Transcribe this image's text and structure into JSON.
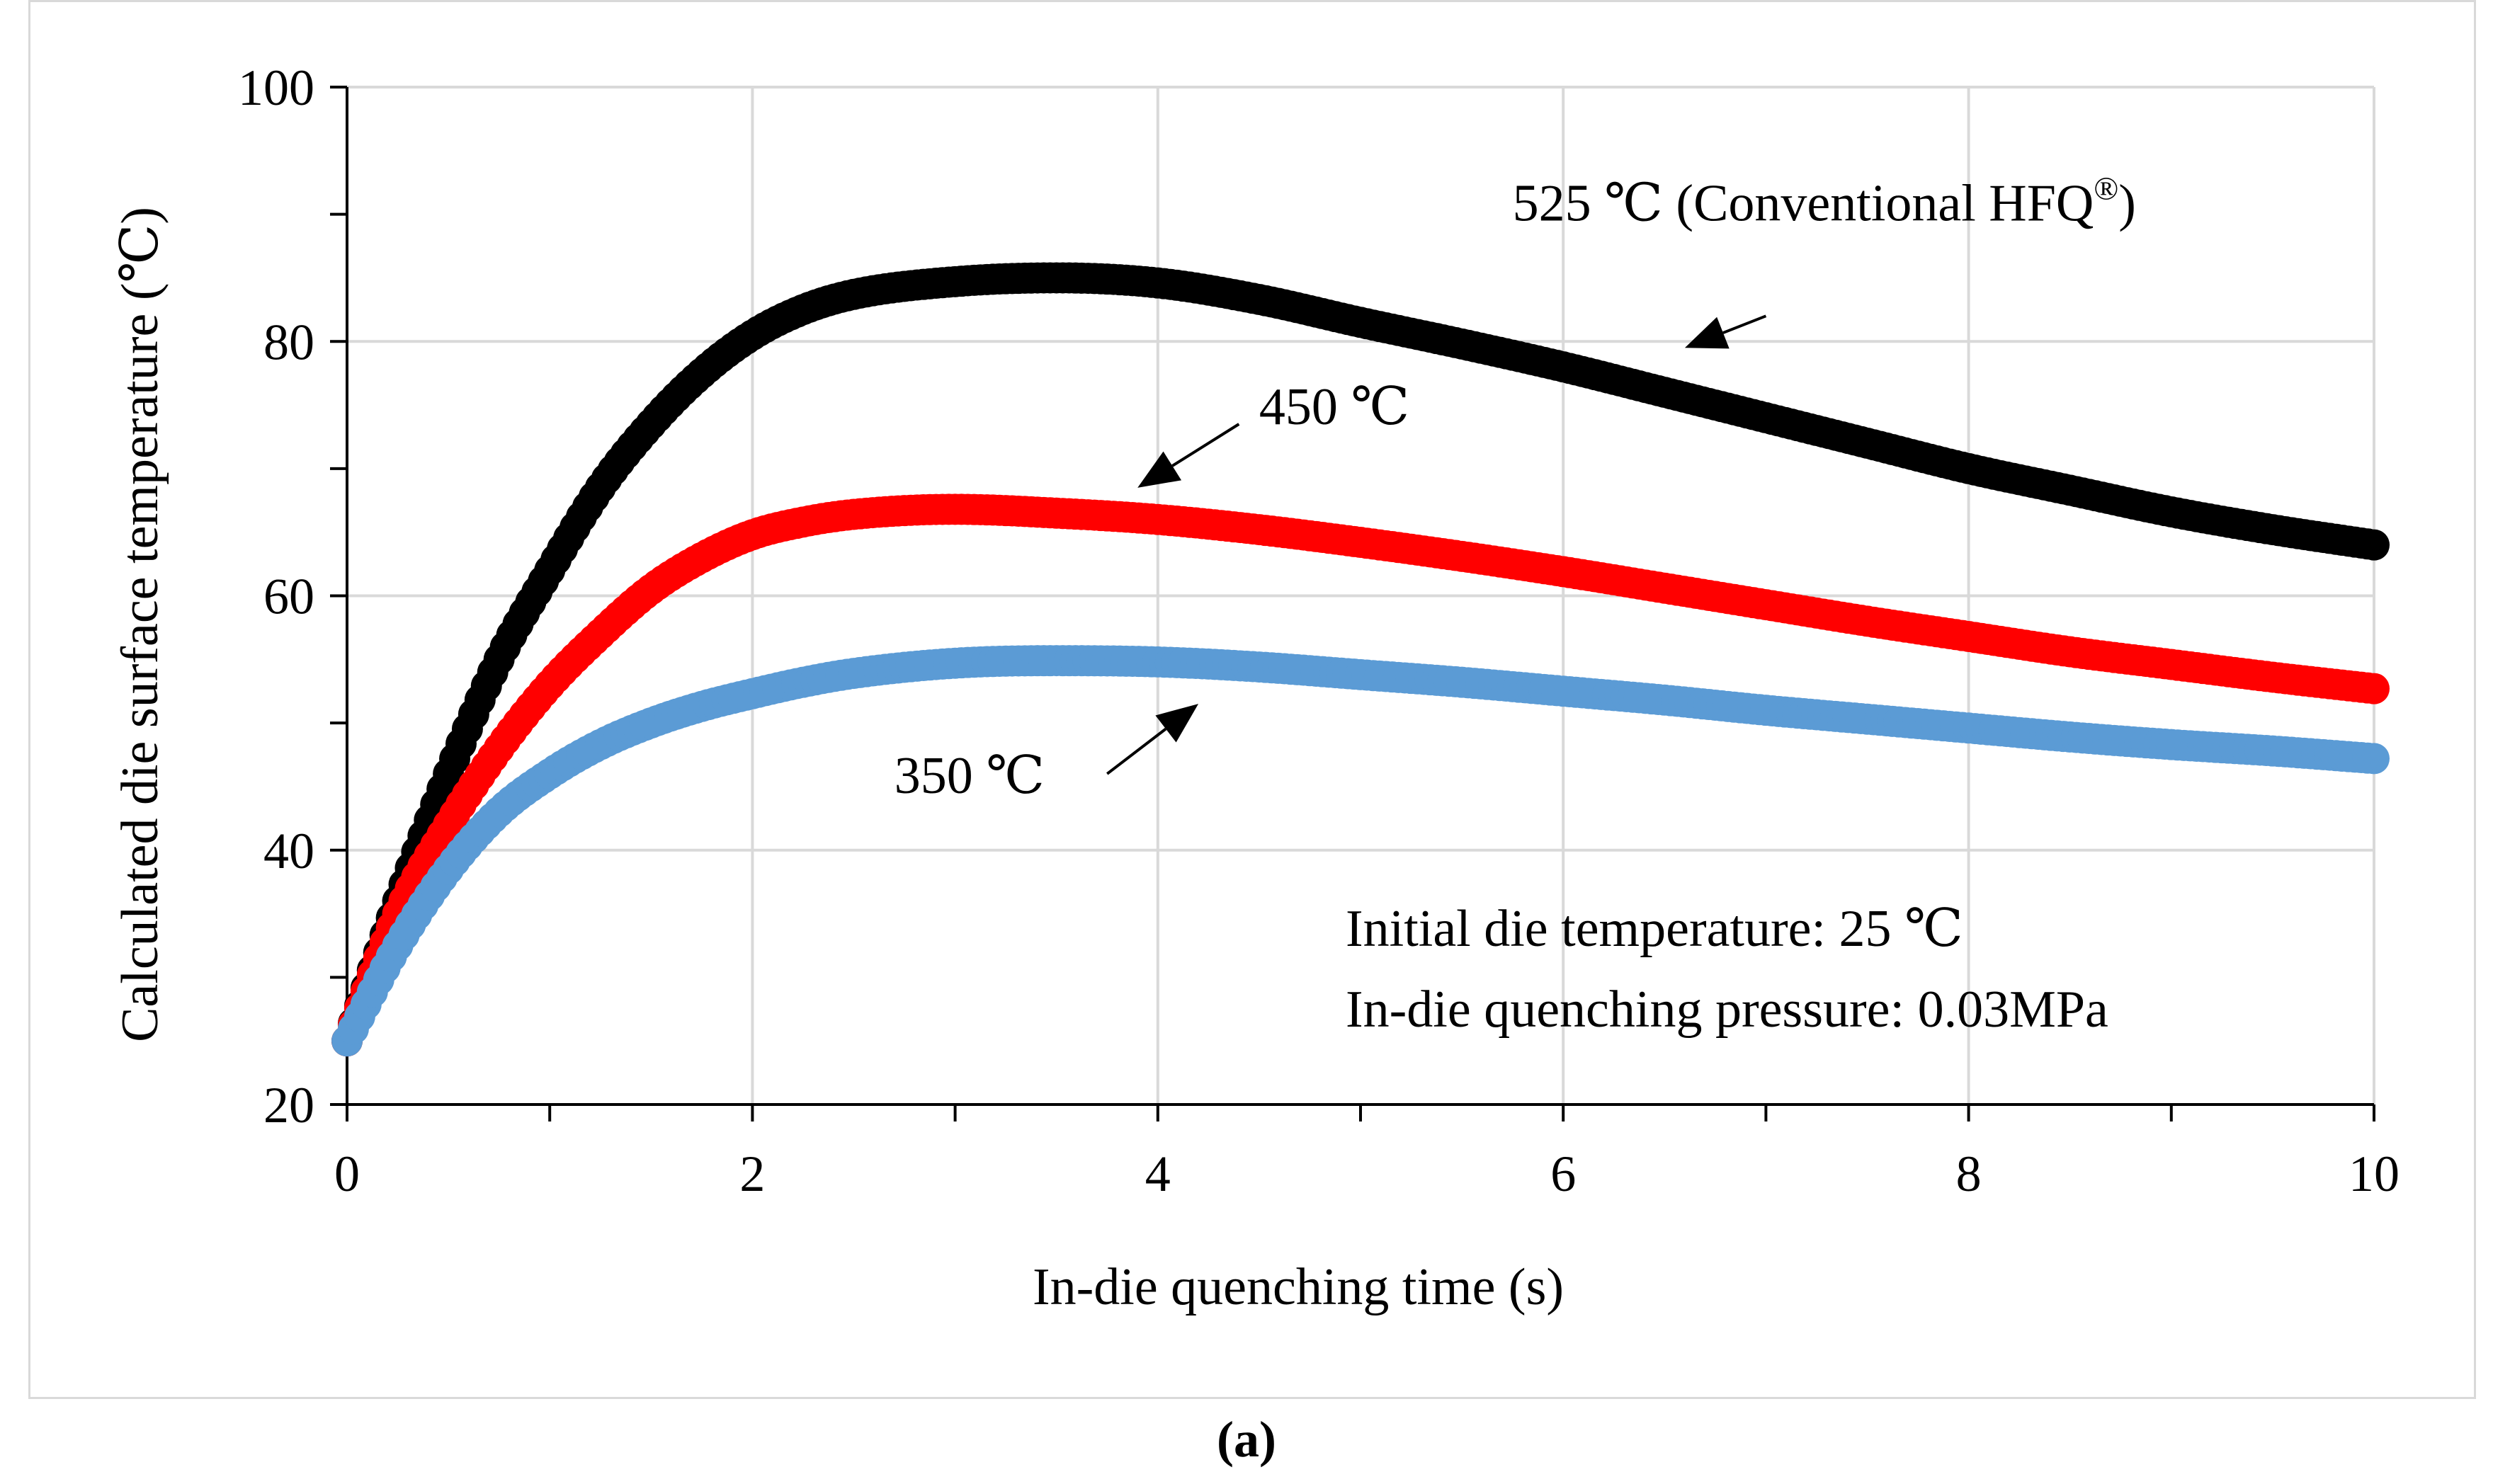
{
  "caption": "(a)",
  "chart_data": {
    "type": "scatter",
    "title": "",
    "xlabel": "In-die quenching time (s)",
    "ylabel": "Calculated die surface temperature (℃)",
    "xlim": [
      0,
      10
    ],
    "ylim": [
      20,
      100
    ],
    "x_ticks": [
      "0",
      "2",
      "4",
      "6",
      "8",
      "10"
    ],
    "y_ticks": [
      "20",
      "40",
      "60",
      "80",
      "100"
    ],
    "grid": true,
    "series": [
      {
        "name": "525 ℃ (Conventional HFQ®)",
        "color": "#000000",
        "x": [
          0,
          0.25,
          0.5,
          0.75,
          1.0,
          1.25,
          1.5,
          1.75,
          2.0,
          2.25,
          2.5,
          3.0,
          3.5,
          4.0,
          4.5,
          5.0,
          5.5,
          6.0,
          6.5,
          7.0,
          7.5,
          8.0,
          8.5,
          9.0,
          9.5,
          10.0
        ],
        "y": [
          25,
          36,
          46,
          55,
          62,
          68.5,
          73.5,
          77.5,
          80.5,
          82.5,
          83.7,
          84.7,
          85,
          84.6,
          83.3,
          81.5,
          79.8,
          78,
          76,
          74,
          72,
          70,
          68.3,
          66.6,
          65.2,
          64
        ]
      },
      {
        "name": "450 ℃",
        "color": "#ff0000",
        "x": [
          0,
          0.25,
          0.5,
          0.75,
          1.0,
          1.25,
          1.5,
          1.75,
          2.0,
          2.25,
          2.5,
          3.0,
          3.5,
          4.0,
          4.5,
          5.0,
          5.5,
          6.0,
          6.5,
          7.0,
          7.5,
          8.0,
          8.5,
          9.0,
          9.5,
          10.0
        ],
        "y": [
          25,
          35,
          42,
          48,
          53,
          57,
          60.5,
          63,
          64.8,
          65.8,
          66.4,
          66.8,
          66.5,
          66,
          65.2,
          64.2,
          63.1,
          61.9,
          60.6,
          59.3,
          58,
          56.8,
          55.6,
          54.6,
          53.6,
          52.7
        ]
      },
      {
        "name": "350 ℃",
        "color": "#5b9bd5",
        "x": [
          0,
          0.25,
          0.5,
          0.75,
          1.0,
          1.25,
          1.5,
          1.75,
          2.0,
          2.25,
          2.5,
          3.0,
          3.5,
          4.0,
          4.5,
          5.0,
          5.5,
          6.0,
          6.5,
          7.0,
          7.5,
          8.0,
          8.5,
          9.0,
          9.5,
          10.0
        ],
        "y": [
          25,
          32.5,
          38.5,
          43,
          46,
          48.3,
          50,
          51.3,
          52.3,
          53.2,
          53.9,
          54.7,
          54.9,
          54.8,
          54.4,
          53.8,
          53.2,
          52.5,
          51.8,
          51,
          50.3,
          49.6,
          48.9,
          48.3,
          47.8,
          47.2
        ]
      }
    ],
    "annotations": [
      {
        "text": "525 ℃ (Conventional HFQ",
        "superscript": "®",
        "close": ")",
        "arrow_from": [
          7.0,
          82.0
        ],
        "arrow_to": [
          6.6,
          79.5
        ],
        "label_at": [
          5.75,
          89.5
        ]
      },
      {
        "text": "450 ℃",
        "arrow_from": [
          4.4,
          73.5
        ],
        "arrow_to": [
          3.9,
          68.5
        ],
        "label_at": [
          4.5,
          73.5
        ]
      },
      {
        "text": "350 ℃",
        "arrow_from": [
          3.75,
          46.0
        ],
        "arrow_to": [
          4.2,
          51.5
        ],
        "label_at": [
          2.7,
          44.5
        ]
      }
    ],
    "notes": [
      "Initial die temperature: 25 ℃",
      "In-die quenching pressure: 0.03MPa"
    ]
  }
}
